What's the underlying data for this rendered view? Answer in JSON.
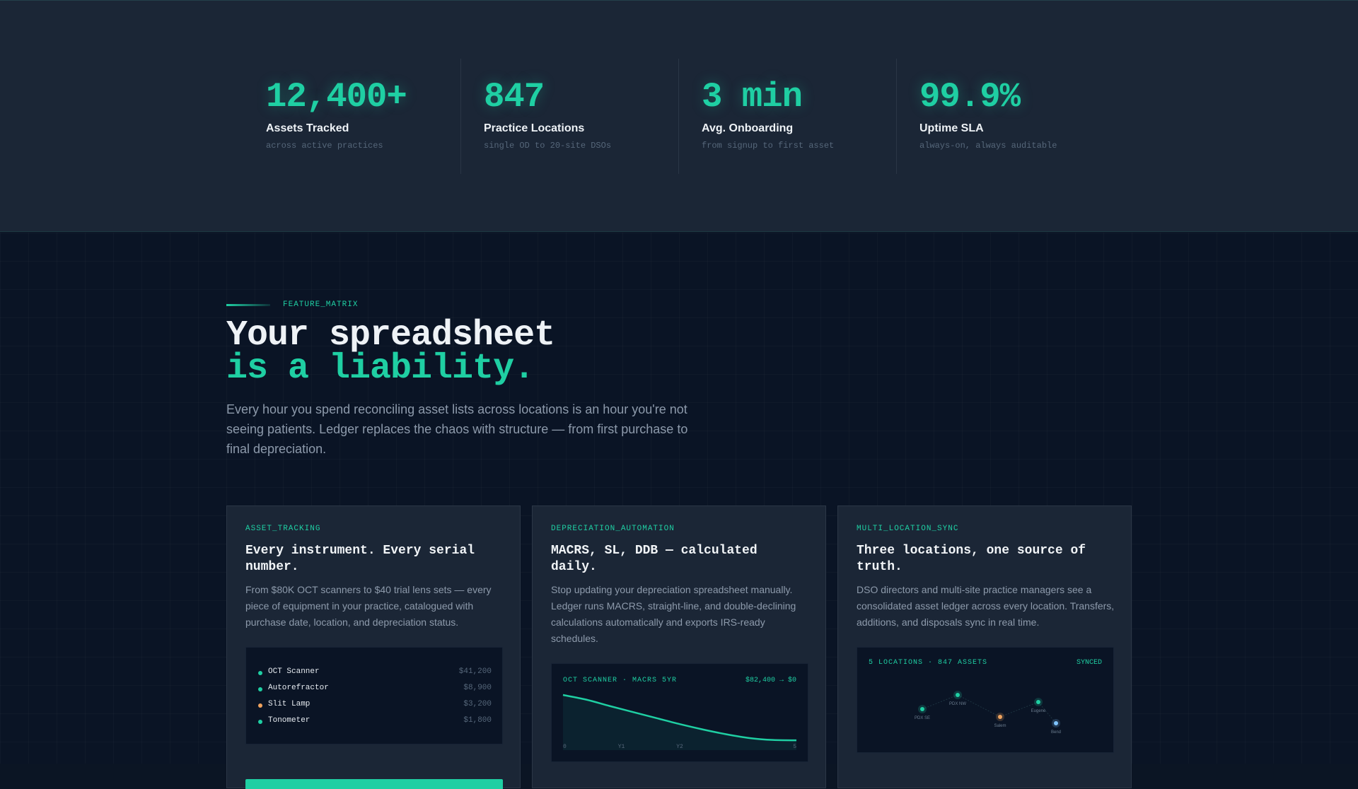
{
  "stats": [
    {
      "value": "12,400+",
      "label": "Assets Tracked",
      "sub": "across active practices"
    },
    {
      "value": "847",
      "label": "Practice Locations",
      "sub": "single OD to 20-site DSOs"
    },
    {
      "value": "3 min",
      "label": "Avg. Onboarding",
      "sub": "from signup to first asset"
    },
    {
      "value": "99.9%",
      "label": "Uptime SLA",
      "sub": "always-on, always auditable"
    }
  ],
  "section": {
    "eyebrow": "FEATURE_MATRIX",
    "headline_line1": "Your spreadsheet",
    "headline_line2": "is a liability.",
    "intro": "Every hour you spend reconciling asset lists across locations is an hour you're not seeing patients. Ledger replaces the chaos with structure — from first purchase to final depreciation."
  },
  "cards": [
    {
      "tag": "ASSET_TRACKING",
      "title": "Every instrument. Every serial number.",
      "body": "From $80K OCT scanners to $40 trial lens sets — every piece of equipment in your practice, catalogued with purchase date, location, and depreciation status.",
      "assets": [
        {
          "name": "OCT Scanner",
          "price": "$41,200",
          "color": "#1fcfa3"
        },
        {
          "name": "Autorefractor",
          "price": "$8,900",
          "color": "#1fcfa3"
        },
        {
          "name": "Slit Lamp",
          "price": "$3,200",
          "color": "#f0a35e"
        },
        {
          "name": "Tonometer",
          "price": "$1,800",
          "color": "#1fcfa3"
        }
      ]
    },
    {
      "tag": "DEPRECIATION_AUTOMATION",
      "title": "MACRS, SL, DDB — calculated daily.",
      "body": "Stop updating your depreciation spreadsheet manually. Ledger runs MACRS, straight-line, and double-declining calculations automatically and exports IRS-ready schedules.",
      "chart_title": "OCT SCANNER · MACRS 5YR",
      "chart_range": "$82,400 → $0",
      "chart_ticks": [
        "0",
        "Y1",
        "Y2",
        "",
        "5"
      ]
    },
    {
      "tag": "MULTI_LOCATION_SYNC",
      "title": "Three locations, one source of truth.",
      "body": "DSO directors and multi-site practice managers see a consolidated asset ledger across every location. Transfers, additions, and disposals sync in real time.",
      "panel_title": "5 LOCATIONS · 847 ASSETS",
      "panel_status": "SYNCED",
      "locations": [
        "PDX SE",
        "PDX NW",
        "Salem",
        "Eugene",
        "Bend"
      ]
    }
  ],
  "chart_data": {
    "type": "line",
    "title": "OCT SCANNER · MACRS 5YR",
    "x": [
      0,
      0.5,
      1,
      1.5,
      2,
      2.5,
      3,
      3.5,
      4,
      4.5,
      5
    ],
    "x_tick_labels": [
      "0",
      "Y1",
      "Y2",
      "",
      "5"
    ],
    "series": [
      {
        "values": [
          82400,
          75000,
          65000,
          55500,
          46000,
          36500,
          28000,
          20500,
          14500,
          11500,
          11000
        ]
      }
    ],
    "ylim": [
      0,
      82400
    ],
    "grid": false
  },
  "colors": {
    "accent": "#1fcfa3",
    "warning": "#f0a35e",
    "info": "#7fc4ff"
  }
}
